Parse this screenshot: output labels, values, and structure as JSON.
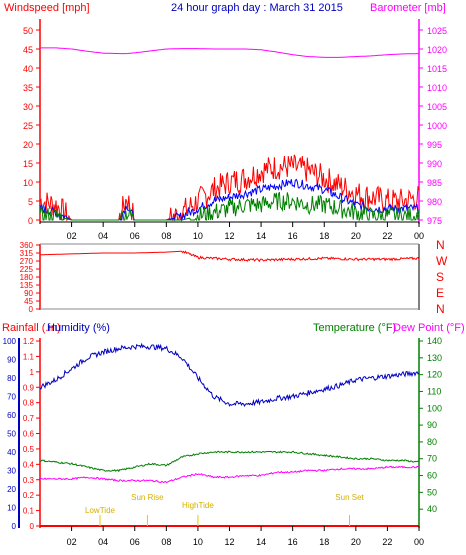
{
  "chart_data": [
    {
      "type": "line",
      "title": "24 hour graph day : March 31 2015",
      "ylabel_left": "Windspeed [mph]",
      "ylabel_right": "Barometer [mb]",
      "xticks": [
        "02",
        "04",
        "06",
        "08",
        "10",
        "12",
        "14",
        "16",
        "18",
        "20",
        "22",
        "00"
      ],
      "left_ticks": [
        "0",
        "5",
        "10",
        "15",
        "20",
        "25",
        "30",
        "35",
        "40",
        "45",
        "50"
      ],
      "right_ticks": [
        "975",
        "980",
        "985",
        "990",
        "995",
        "1000",
        "1005",
        "1010",
        "1015",
        "1020",
        "1025"
      ],
      "ylim_left": [
        0,
        50
      ],
      "ylim_right": [
        975,
        1025
      ],
      "x_hours": [
        0,
        1,
        2,
        3,
        4,
        5,
        5.5,
        6,
        7,
        8,
        9,
        10,
        11,
        12,
        13,
        14,
        15,
        16,
        17,
        18,
        19,
        20,
        21,
        22,
        23,
        24
      ],
      "series": [
        {
          "color": "#ff0000",
          "style": "gust",
          "values": [
            5,
            4,
            0,
            0,
            0,
            0,
            6,
            0,
            0,
            0,
            2,
            5,
            8,
            10,
            11,
            13,
            14,
            14,
            13,
            11,
            9,
            7,
            6,
            5,
            5,
            6
          ]
        },
        {
          "color": "#0000ff",
          "style": "average",
          "values": [
            3,
            2,
            0,
            0,
            0,
            0,
            4,
            0,
            0,
            0,
            1,
            3,
            5,
            6,
            7,
            8,
            9,
            10,
            9,
            8,
            6,
            4,
            3,
            3,
            3,
            3
          ]
        },
        {
          "color": "#008000",
          "style": "lull",
          "values": [
            1,
            1,
            0,
            0,
            0,
            0,
            2,
            0,
            0,
            0,
            0,
            1,
            2,
            3,
            4,
            4,
            5,
            5,
            4,
            4,
            3,
            2,
            1,
            1,
            1,
            1
          ]
        },
        {
          "color": "#ff00ff",
          "style": "barometer",
          "values": [
            1020.3,
            1020.3,
            1020,
            1019.4,
            1018.9,
            1018.8,
            1018.8,
            1019,
            1019.5,
            1020,
            1020.1,
            1020.1,
            1020.0,
            1020,
            1020,
            1019.8,
            1019.2,
            1018.5,
            1018,
            1017.8,
            1017.8,
            1018,
            1018.2,
            1018.5,
            1018.7,
            1018.8
          ]
        }
      ]
    },
    {
      "type": "line",
      "ylabel_right": "N W S E N",
      "compass": [
        "N",
        "W",
        "S",
        "E",
        "N"
      ],
      "left_ticks": [
        "0",
        "45",
        "90",
        "135",
        "180",
        "225",
        "270",
        "315",
        "360"
      ],
      "ylim": [
        0,
        360
      ],
      "x_hours": [
        0,
        2,
        4,
        6,
        8,
        9,
        10,
        12,
        14,
        16,
        18,
        20,
        22,
        24
      ],
      "series": [
        {
          "color": "#ff0000",
          "style": "wind direction",
          "values": [
            305,
            310,
            315,
            315,
            320,
            325,
            290,
            280,
            275,
            280,
            285,
            280,
            280,
            285
          ]
        }
      ]
    },
    {
      "type": "line",
      "ylabel_left": "Rainfall (.in)",
      "ylabel_humidity": "Humidity (%)",
      "ylabel_right": "Temperature (°F)",
      "ylabel_right2": "Dew Point (°F)",
      "rain_ticks": [
        "0",
        "0.1",
        "0.2",
        "0.3",
        "0.4",
        "0.5",
        "0.6",
        "0.7",
        "0.8",
        "0.9",
        "1",
        "1.1",
        "1.2"
      ],
      "humidity_ticks": [
        "0",
        "10",
        "20",
        "30",
        "40",
        "50",
        "60",
        "70",
        "80",
        "90",
        "100"
      ],
      "temp_ticks": [
        "40",
        "50",
        "60",
        "70",
        "80",
        "90",
        "100",
        "110",
        "120",
        "130",
        "140"
      ],
      "xticks": [
        "02",
        "04",
        "06",
        "08",
        "10",
        "12",
        "14",
        "16",
        "18",
        "20",
        "22",
        "00"
      ],
      "ylim_humidity": [
        0,
        100
      ],
      "ylim_temp": [
        30,
        140
      ],
      "x_hours": [
        0,
        1,
        2,
        3,
        4,
        5,
        6,
        7,
        8,
        9,
        10,
        11,
        12,
        13,
        14,
        15,
        16,
        17,
        18,
        19,
        20,
        21,
        22,
        23,
        24
      ],
      "series": [
        {
          "name": "Humidity (%)",
          "color": "#0000c0",
          "values": [
            75,
            79,
            85,
            91,
            94,
            96,
            97,
            97,
            96,
            91,
            80,
            70,
            66,
            66,
            67,
            69,
            70,
            72,
            74,
            76,
            79,
            80,
            81,
            82,
            83
          ]
        },
        {
          "name": "Temperature (°F)",
          "color": "#008000",
          "values": [
            69,
            68,
            67,
            65,
            63,
            63,
            65,
            67,
            66,
            71,
            73,
            74,
            74,
            74,
            74,
            74,
            74,
            73,
            72,
            71,
            70,
            70,
            69,
            69,
            68
          ]
        },
        {
          "name": "Dew Point (°F)",
          "color": "#ff00ff",
          "values": [
            58,
            58,
            58,
            59,
            58,
            57,
            57,
            57,
            56,
            59,
            61,
            59,
            59,
            60,
            60,
            62,
            62,
            63,
            63,
            64,
            64,
            64,
            65,
            65,
            65
          ]
        }
      ],
      "annotations": [
        {
          "label": "LowTide",
          "x": 3.8
        },
        {
          "label": "Sun Rise",
          "x": 6.8
        },
        {
          "label": "HighTide",
          "x": 10.0
        },
        {
          "label": "Sun Set",
          "x": 19.6
        }
      ],
      "sunset_tick_label": "20"
    }
  ]
}
